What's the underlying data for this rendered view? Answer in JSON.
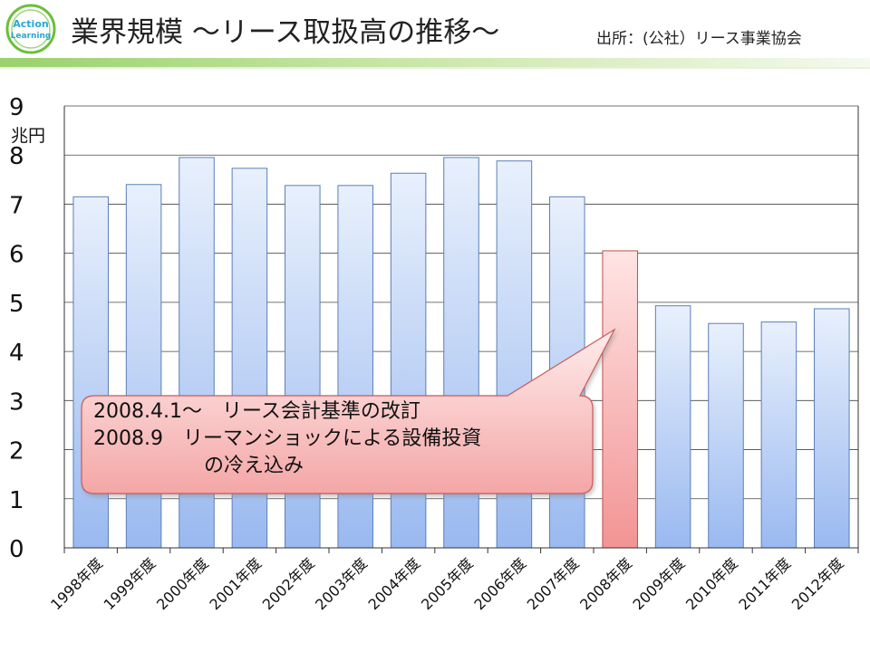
{
  "header": {
    "logo_text_1": "Action",
    "logo_text_2": "Learning",
    "title": "業界規模 〜リース取扱高の推移〜",
    "source": "出所：(公社）リース事業協会"
  },
  "callout": {
    "line1": "2008.4.1〜　リース会計基準の改訂",
    "line2": "2008.9　リーマンショックによる設備投資",
    "line3": "の冷え込み"
  },
  "colors": {
    "bar_top": "#e8f0fc",
    "bar_bottom": "#9ab9f0",
    "bar_stroke": "#5b7fb8",
    "highlight_top": "#ffe4e4",
    "highlight_bottom": "#f29494",
    "highlight_stroke": "#c24d4d",
    "callout_top": "#ffecec",
    "callout_bottom": "#f4a6a6",
    "grid": "#444444"
  },
  "chart_data": {
    "type": "bar",
    "title": "",
    "unit_label": "兆円",
    "categories": [
      "1998年度",
      "1999年度",
      "2000年度",
      "2001年度",
      "2002年度",
      "2003年度",
      "2004年度",
      "2005年度",
      "2006年度",
      "2007年度",
      "2008年度",
      "2009年度",
      "2010年度",
      "2011年度",
      "2012年度"
    ],
    "values": [
      7.15,
      7.4,
      7.95,
      7.73,
      7.38,
      7.38,
      7.63,
      7.95,
      7.88,
      7.15,
      6.05,
      4.93,
      4.57,
      4.6,
      4.87
    ],
    "highlight_index": 10,
    "ylim": [
      0,
      9
    ],
    "yticks": [
      0,
      1,
      2,
      3,
      4,
      5,
      6,
      7,
      8,
      9
    ],
    "grid": true,
    "legend": "none"
  }
}
